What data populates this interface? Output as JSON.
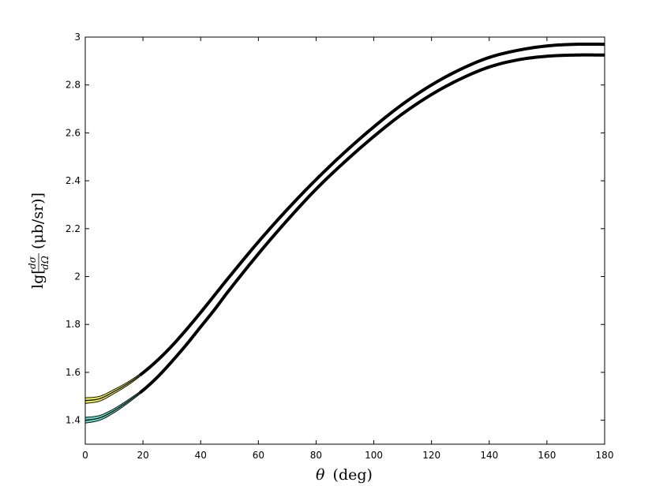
{
  "chart_data": {
    "type": "line",
    "xlabel": {
      "symbol": "θ",
      "unit": "(deg)"
    },
    "ylabel": {
      "prefix": "lg[",
      "num": "dσ",
      "den": "dΩ",
      "unit": "(μb/sr)]"
    },
    "xlim": [
      0,
      180
    ],
    "ylim": [
      1.3,
      3.0
    ],
    "xticks": [
      0,
      20,
      40,
      60,
      80,
      100,
      120,
      140,
      160,
      180
    ],
    "yticks": [
      1.4,
      1.6,
      1.8,
      2.0,
      2.2,
      2.4,
      2.6,
      2.8,
      3.0
    ],
    "ytick_labels": [
      "1.4",
      "1.6",
      "1.8",
      "2",
      "2.2",
      "2.4",
      "2.6",
      "2.8",
      "3"
    ],
    "grid": false,
    "series": [
      {
        "color": "#000000",
        "band_color": "#e8e84a",
        "band_halfwidth": 0.012,
        "band_fade_x": 25,
        "x": [
          0,
          5,
          10,
          15,
          20,
          25,
          30,
          35,
          40,
          45,
          50,
          60,
          70,
          80,
          90,
          100,
          110,
          120,
          130,
          140,
          150,
          160,
          170,
          180
        ],
        "y": [
          1.482,
          1.49,
          1.52,
          1.555,
          1.598,
          1.65,
          1.71,
          1.778,
          1.85,
          1.925,
          2.0,
          2.145,
          2.28,
          2.405,
          2.52,
          2.625,
          2.72,
          2.8,
          2.865,
          2.915,
          2.945,
          2.963,
          2.97,
          2.97
        ]
      },
      {
        "color": "#000000",
        "band_color": "#5fd6c4",
        "band_halfwidth": 0.012,
        "band_fade_x": 25,
        "x": [
          0,
          5,
          10,
          15,
          20,
          25,
          30,
          35,
          40,
          45,
          50,
          60,
          70,
          80,
          90,
          100,
          110,
          120,
          130,
          140,
          150,
          160,
          170,
          180
        ],
        "y": [
          1.4,
          1.41,
          1.44,
          1.48,
          1.525,
          1.58,
          1.645,
          1.715,
          1.79,
          1.865,
          1.945,
          2.095,
          2.235,
          2.365,
          2.48,
          2.585,
          2.68,
          2.76,
          2.825,
          2.875,
          2.905,
          2.92,
          2.925,
          2.925
        ]
      }
    ]
  }
}
